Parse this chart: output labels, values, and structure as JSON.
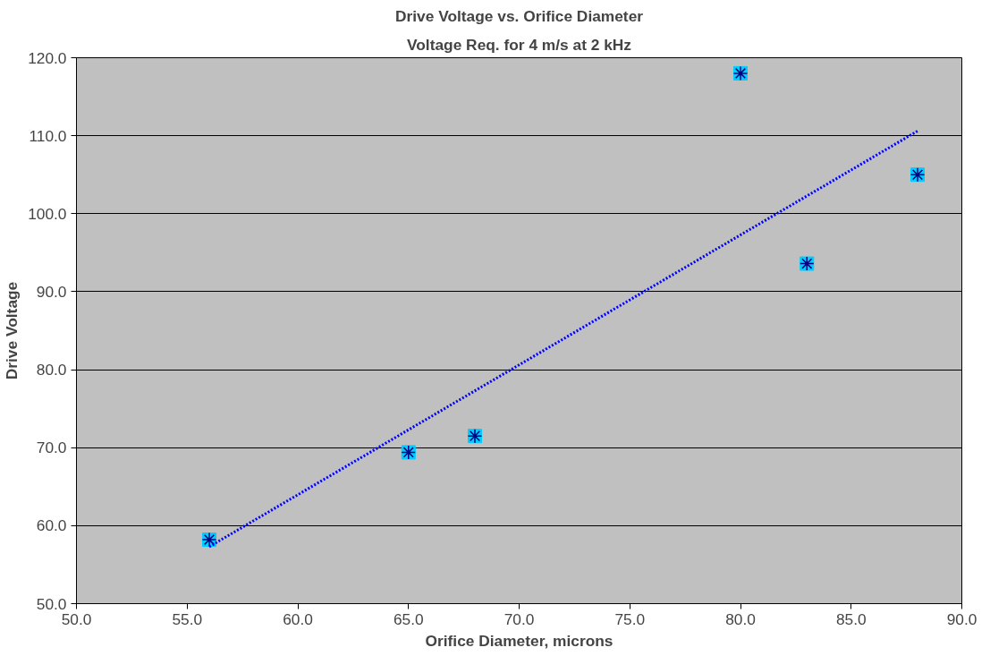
{
  "chart_data": {
    "type": "scatter",
    "title": "Drive Voltage vs. Orifice Diameter",
    "subtitle": "Voltage Req. for 4 m/s at 2 kHz",
    "xlabel": "Orifice Diameter, microns",
    "ylabel": "Drive Voltage",
    "xlim": [
      50,
      90
    ],
    "ylim": [
      50,
      120
    ],
    "xticks": [
      {
        "value": 50,
        "label": "50.0"
      },
      {
        "value": 55,
        "label": "55.0"
      },
      {
        "value": 60,
        "label": "60.0"
      },
      {
        "value": 65,
        "label": "65.0"
      },
      {
        "value": 70,
        "label": "70.0"
      },
      {
        "value": 75,
        "label": "75.0"
      },
      {
        "value": 80,
        "label": "80.0"
      },
      {
        "value": 85,
        "label": "85.0"
      },
      {
        "value": 90,
        "label": "90.0"
      }
    ],
    "yticks": [
      {
        "value": 50,
        "label": "50.0"
      },
      {
        "value": 60,
        "label": "60.0"
      },
      {
        "value": 70,
        "label": "70.0"
      },
      {
        "value": 80,
        "label": "80.0"
      },
      {
        "value": 90,
        "label": "90.0"
      },
      {
        "value": 100,
        "label": "100.0"
      },
      {
        "value": 110,
        "label": "110.0"
      },
      {
        "value": 120,
        "label": "120.0"
      }
    ],
    "grid": "y",
    "marker": "square",
    "series": [
      {
        "color": "#00ccff",
        "x": [
          56,
          65,
          68,
          80,
          83,
          88
        ],
        "values": [
          58.2,
          69.4,
          71.5,
          118,
          93.6,
          105
        ]
      },
      {
        "type": "line",
        "color": "#0000ff",
        "line_style": "dotted",
        "marker": "none",
        "x": [
          56,
          88
        ],
        "values": [
          57.3,
          110.6
        ]
      }
    ]
  }
}
